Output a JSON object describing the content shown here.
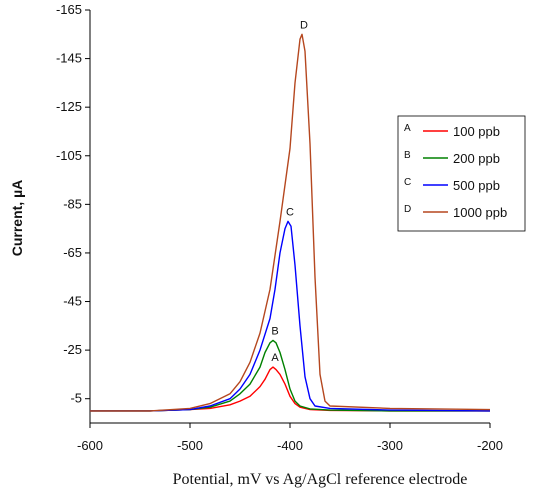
{
  "chart_data": {
    "type": "line",
    "title": "",
    "xlabel": "Potential, mV vs Ag/AgCl reference electrode",
    "ylabel": "Current, µA",
    "xlim": [
      -600,
      -200
    ],
    "ylim": [
      5,
      -165
    ],
    "y_axis_inverted": true,
    "x_ticks": [
      "-600",
      "-500",
      "-400",
      "-300",
      "-200"
    ],
    "y_ticks": [
      "-165",
      "-145",
      "-125",
      "-105",
      "-85",
      "-65",
      "-45",
      "-25",
      "-5"
    ],
    "grid": false,
    "legend_position": "right",
    "series": [
      {
        "name": "100 ppb",
        "letter": "A",
        "color": "#ff0000",
        "points": [
          [
            -600,
            0
          ],
          [
            -540,
            0
          ],
          [
            -500,
            -0.5
          ],
          [
            -480,
            -1
          ],
          [
            -460,
            -2.5
          ],
          [
            -450,
            -4
          ],
          [
            -440,
            -6
          ],
          [
            -430,
            -10
          ],
          [
            -425,
            -13
          ],
          [
            -420,
            -17
          ],
          [
            -417,
            -18
          ],
          [
            -414,
            -17
          ],
          [
            -410,
            -15
          ],
          [
            -405,
            -11
          ],
          [
            -400,
            -6
          ],
          [
            -395,
            -3
          ],
          [
            -390,
            -1.5
          ],
          [
            -380,
            -0.5
          ],
          [
            -360,
            -0.2
          ],
          [
            -300,
            0
          ],
          [
            -200,
            0
          ]
        ]
      },
      {
        "name": "200 ppb",
        "letter": "B",
        "color": "#008000",
        "points": [
          [
            -600,
            0
          ],
          [
            -540,
            0
          ],
          [
            -500,
            -0.5
          ],
          [
            -480,
            -1.5
          ],
          [
            -460,
            -4
          ],
          [
            -450,
            -7
          ],
          [
            -440,
            -11
          ],
          [
            -430,
            -18
          ],
          [
            -425,
            -24
          ],
          [
            -420,
            -28
          ],
          [
            -417,
            -29
          ],
          [
            -414,
            -28
          ],
          [
            -410,
            -24
          ],
          [
            -405,
            -17
          ],
          [
            -400,
            -9
          ],
          [
            -395,
            -4
          ],
          [
            -390,
            -2
          ],
          [
            -380,
            -0.8
          ],
          [
            -360,
            -0.3
          ],
          [
            -300,
            0
          ],
          [
            -200,
            0
          ]
        ]
      },
      {
        "name": "500 ppb",
        "letter": "C",
        "color": "#0000ff",
        "points": [
          [
            -600,
            0
          ],
          [
            -540,
            0
          ],
          [
            -500,
            -0.5
          ],
          [
            -480,
            -2
          ],
          [
            -460,
            -5
          ],
          [
            -450,
            -9
          ],
          [
            -440,
            -15
          ],
          [
            -430,
            -25
          ],
          [
            -420,
            -38
          ],
          [
            -415,
            -50
          ],
          [
            -410,
            -65
          ],
          [
            -405,
            -75
          ],
          [
            -402,
            -78
          ],
          [
            -399,
            -76
          ],
          [
            -395,
            -60
          ],
          [
            -390,
            -35
          ],
          [
            -385,
            -14
          ],
          [
            -380,
            -5
          ],
          [
            -375,
            -2
          ],
          [
            -360,
            -1
          ],
          [
            -300,
            -0.3
          ],
          [
            -200,
            0
          ]
        ]
      },
      {
        "name": "1000 ppb",
        "letter": "D",
        "color": "#b5471f",
        "points": [
          [
            -600,
            0
          ],
          [
            -540,
            0
          ],
          [
            -500,
            -1
          ],
          [
            -480,
            -3
          ],
          [
            -460,
            -7
          ],
          [
            -450,
            -12
          ],
          [
            -440,
            -20
          ],
          [
            -430,
            -32
          ],
          [
            -420,
            -50
          ],
          [
            -410,
            -78
          ],
          [
            -400,
            -108
          ],
          [
            -395,
            -135
          ],
          [
            -390,
            -153
          ],
          [
            -388,
            -155
          ],
          [
            -385,
            -148
          ],
          [
            -380,
            -110
          ],
          [
            -375,
            -55
          ],
          [
            -370,
            -15
          ],
          [
            -365,
            -4
          ],
          [
            -360,
            -2
          ],
          [
            -300,
            -1
          ],
          [
            -200,
            -0.5
          ]
        ]
      }
    ]
  }
}
